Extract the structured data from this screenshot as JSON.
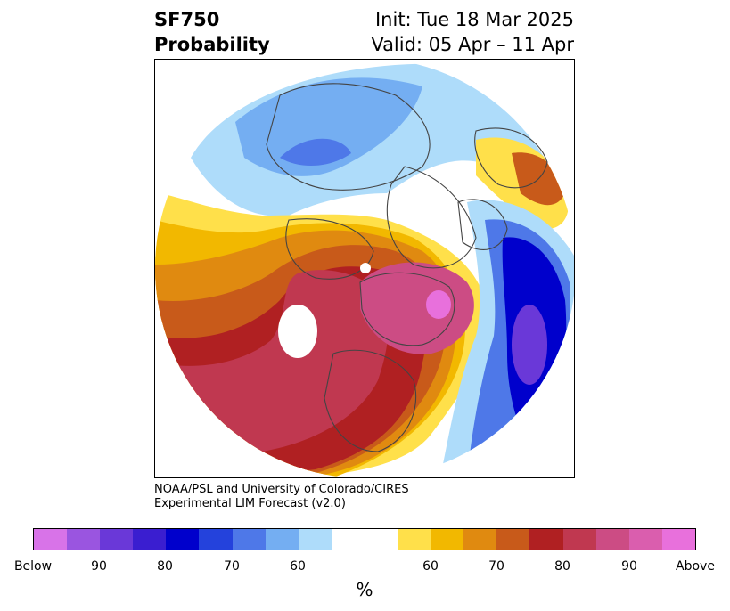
{
  "header": {
    "title_line1": "SF750",
    "title_line2": "Probability",
    "init": "Init: Tue 18 Mar 2025",
    "valid": "Valid: 05 Apr – 11 Apr"
  },
  "credit": {
    "line1": "NOAA/PSL and University of Colorado/CIRES",
    "line2": "Experimental LIM Forecast (v2.0)"
  },
  "colorbar": {
    "colors": [
      "#d873e8",
      "#9a55e0",
      "#6a38d8",
      "#3a1ed0",
      "#0000cc",
      "#2442dc",
      "#4e78e8",
      "#74aef2",
      "#aedcfa",
      "#ffffff",
      "#ffffff",
      "#ffe04a",
      "#f2b800",
      "#e08a10",
      "#c85a1a",
      "#b02022",
      "#c03850",
      "#cc4c84",
      "#da5eae",
      "#e870dc"
    ],
    "ticks": [
      "Below",
      "90",
      "80",
      "70",
      "60",
      "60",
      "70",
      "80",
      "90",
      "Above"
    ],
    "unit": "%"
  },
  "map": {
    "background": "#ffffff",
    "land_outline_color": "#444444"
  }
}
